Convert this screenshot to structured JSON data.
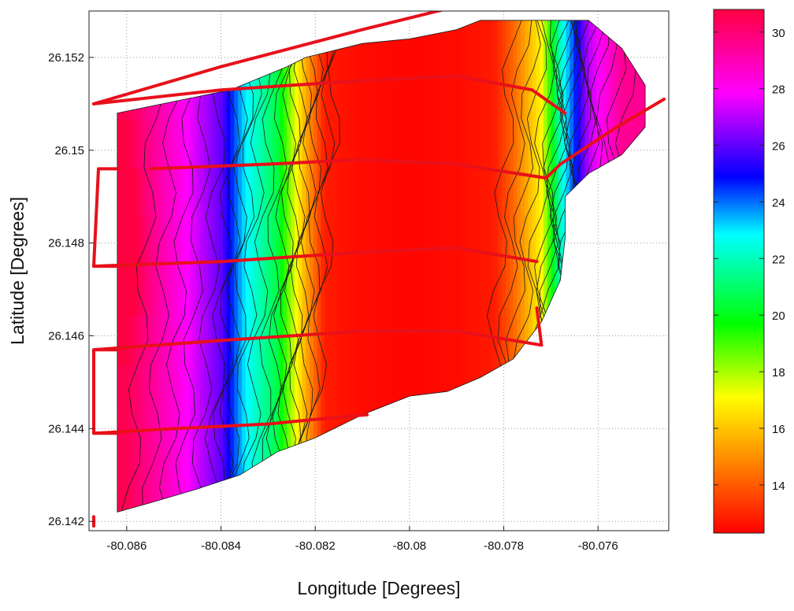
{
  "chart_data": {
    "type": "contour",
    "title": "",
    "xlabel": "Longitude [Degrees]",
    "ylabel": "Latitude [Degrees]",
    "xlim": [
      -80.0868,
      -80.0745
    ],
    "ylim": [
      26.1418,
      26.153
    ],
    "x_ticks": [
      "-80.086",
      "-80.084",
      "-80.082",
      "-80.08",
      "-80.078",
      "-80.076"
    ],
    "x_tick_values": [
      -80.086,
      -80.084,
      -80.082,
      -80.08,
      -80.078,
      -80.076
    ],
    "y_ticks": [
      "26.142",
      "26.144",
      "26.146",
      "26.148",
      "26.15",
      "26.152"
    ],
    "y_tick_values": [
      26.142,
      26.144,
      26.146,
      26.148,
      26.15,
      26.152
    ],
    "grid": true,
    "colorbar": {
      "range": [
        12.3,
        30.8
      ],
      "ticks": [
        "14",
        "16",
        "18",
        "20",
        "22",
        "24",
        "26",
        "28",
        "30"
      ],
      "tick_values": [
        14,
        16,
        18,
        20,
        22,
        24,
        26,
        28,
        30
      ],
      "colormap": [
        "#ff0000",
        "#ff8000",
        "#ffff00",
        "#00ff00",
        "#00ffff",
        "#0000ff",
        "#ff00ff",
        "#ff0040"
      ]
    },
    "contour_color": "#1a1a1a",
    "track_color": "#e8101a",
    "field": {
      "x": [
        -80.0865,
        -80.086,
        -80.085,
        -80.084,
        -80.0835,
        -80.0828,
        -80.0822,
        -80.0818,
        -80.081,
        -80.08,
        -80.079,
        -80.0782,
        -80.0778,
        -80.0772,
        -80.0768,
        -80.0762,
        -80.0755,
        -80.0748
      ],
      "west_profile": [
        29.5,
        29.5,
        27.0,
        22.0,
        17.0,
        14.2,
        12.8,
        12.5,
        12.4,
        12.5,
        12.8,
        15.5,
        20.5,
        23.0,
        26.0,
        28.5,
        30.5,
        30.5
      ],
      "east_profile": [
        29.5,
        29.5,
        27.0,
        22.0,
        17.0,
        14.2,
        12.8,
        12.5,
        12.4,
        12.5,
        12.8,
        15.5,
        20.5,
        23.0,
        26.0,
        28.5,
        30.5,
        30.5
      ],
      "boundary": [
        [
          -80.0862,
          26.1508
        ],
        [
          -80.0838,
          26.1513
        ],
        [
          -80.0826,
          26.1518
        ],
        [
          -80.0822,
          26.152
        ],
        [
          -80.081,
          26.1523
        ],
        [
          -80.08,
          26.1524
        ],
        [
          -80.079,
          26.1526
        ],
        [
          -80.0785,
          26.1528
        ],
        [
          -80.077,
          26.1528
        ],
        [
          -80.0762,
          26.1528
        ],
        [
          -80.0755,
          26.1522
        ],
        [
          -80.075,
          26.1514
        ],
        [
          -80.075,
          26.1505
        ],
        [
          -80.0755,
          26.1499
        ],
        [
          -80.0762,
          26.1495
        ],
        [
          -80.0767,
          26.149
        ],
        [
          -80.0767,
          26.1481
        ],
        [
          -80.0768,
          26.1472
        ],
        [
          -80.0772,
          26.1463
        ],
        [
          -80.0778,
          26.1455
        ],
        [
          -80.0785,
          26.1451
        ],
        [
          -80.0792,
          26.1448
        ],
        [
          -80.08,
          26.1447
        ],
        [
          -80.081,
          26.1443
        ],
        [
          -80.082,
          26.1438
        ],
        [
          -80.0828,
          26.1435
        ],
        [
          -80.0836,
          26.143
        ],
        [
          -80.0845,
          26.1427
        ],
        [
          -80.0855,
          26.1424
        ],
        [
          -80.0862,
          26.1422
        ]
      ]
    },
    "tracks": [
      [
        [
          -80.0867,
          26.151
        ],
        [
          -80.084,
          26.1518
        ],
        [
          -80.081,
          26.1526
        ],
        [
          -80.079,
          26.1531
        ],
        [
          -80.0764,
          26.1534
        ]
      ],
      [
        [
          -80.0867,
          26.151
        ],
        [
          -80.084,
          26.1513
        ],
        [
          -80.081,
          26.1515
        ],
        [
          -80.079,
          26.1516
        ],
        [
          -80.0774,
          26.1513
        ],
        [
          -80.0767,
          26.1508
        ]
      ],
      [
        [
          -80.0855,
          26.1496
        ],
        [
          -80.083,
          26.1497
        ],
        [
          -80.081,
          26.1498
        ],
        [
          -80.079,
          26.1497
        ],
        [
          -80.0771,
          26.1494
        ]
      ],
      [
        [
          -80.0867,
          26.1475
        ],
        [
          -80.084,
          26.1476
        ],
        [
          -80.081,
          26.1478
        ],
        [
          -80.079,
          26.1479
        ],
        [
          -80.0773,
          26.1476
        ]
      ],
      [
        [
          -80.0867,
          26.1457
        ],
        [
          -80.084,
          26.1459
        ],
        [
          -80.081,
          26.1461
        ],
        [
          -80.079,
          26.1461
        ],
        [
          -80.0772,
          26.1458
        ]
      ],
      [
        [
          -80.0867,
          26.1439
        ],
        [
          -80.085,
          26.144
        ],
        [
          -80.083,
          26.1441
        ],
        [
          -80.082,
          26.1442
        ],
        [
          -80.0809,
          26.1443
        ]
      ],
      [
        [
          -80.0771,
          26.1494
        ],
        [
          -80.0768,
          26.1497
        ],
        [
          -80.0756,
          26.1505
        ],
        [
          -80.0746,
          26.1511
        ]
      ],
      [
        [
          -80.0773,
          26.1466
        ],
        [
          -80.0772,
          26.1458
        ]
      ],
      [
        [
          -80.0862,
          26.1496
        ],
        [
          -80.0866,
          26.1496
        ],
        [
          -80.0867,
          26.1475
        ],
        [
          -80.0862,
          26.1475
        ]
      ],
      [
        [
          -80.0862,
          26.1457
        ],
        [
          -80.0867,
          26.1457
        ],
        [
          -80.0867,
          26.1439
        ],
        [
          -80.0862,
          26.1439
        ]
      ],
      [
        [
          -80.0867,
          26.1421
        ],
        [
          -80.0867,
          26.1419
        ]
      ]
    ]
  }
}
